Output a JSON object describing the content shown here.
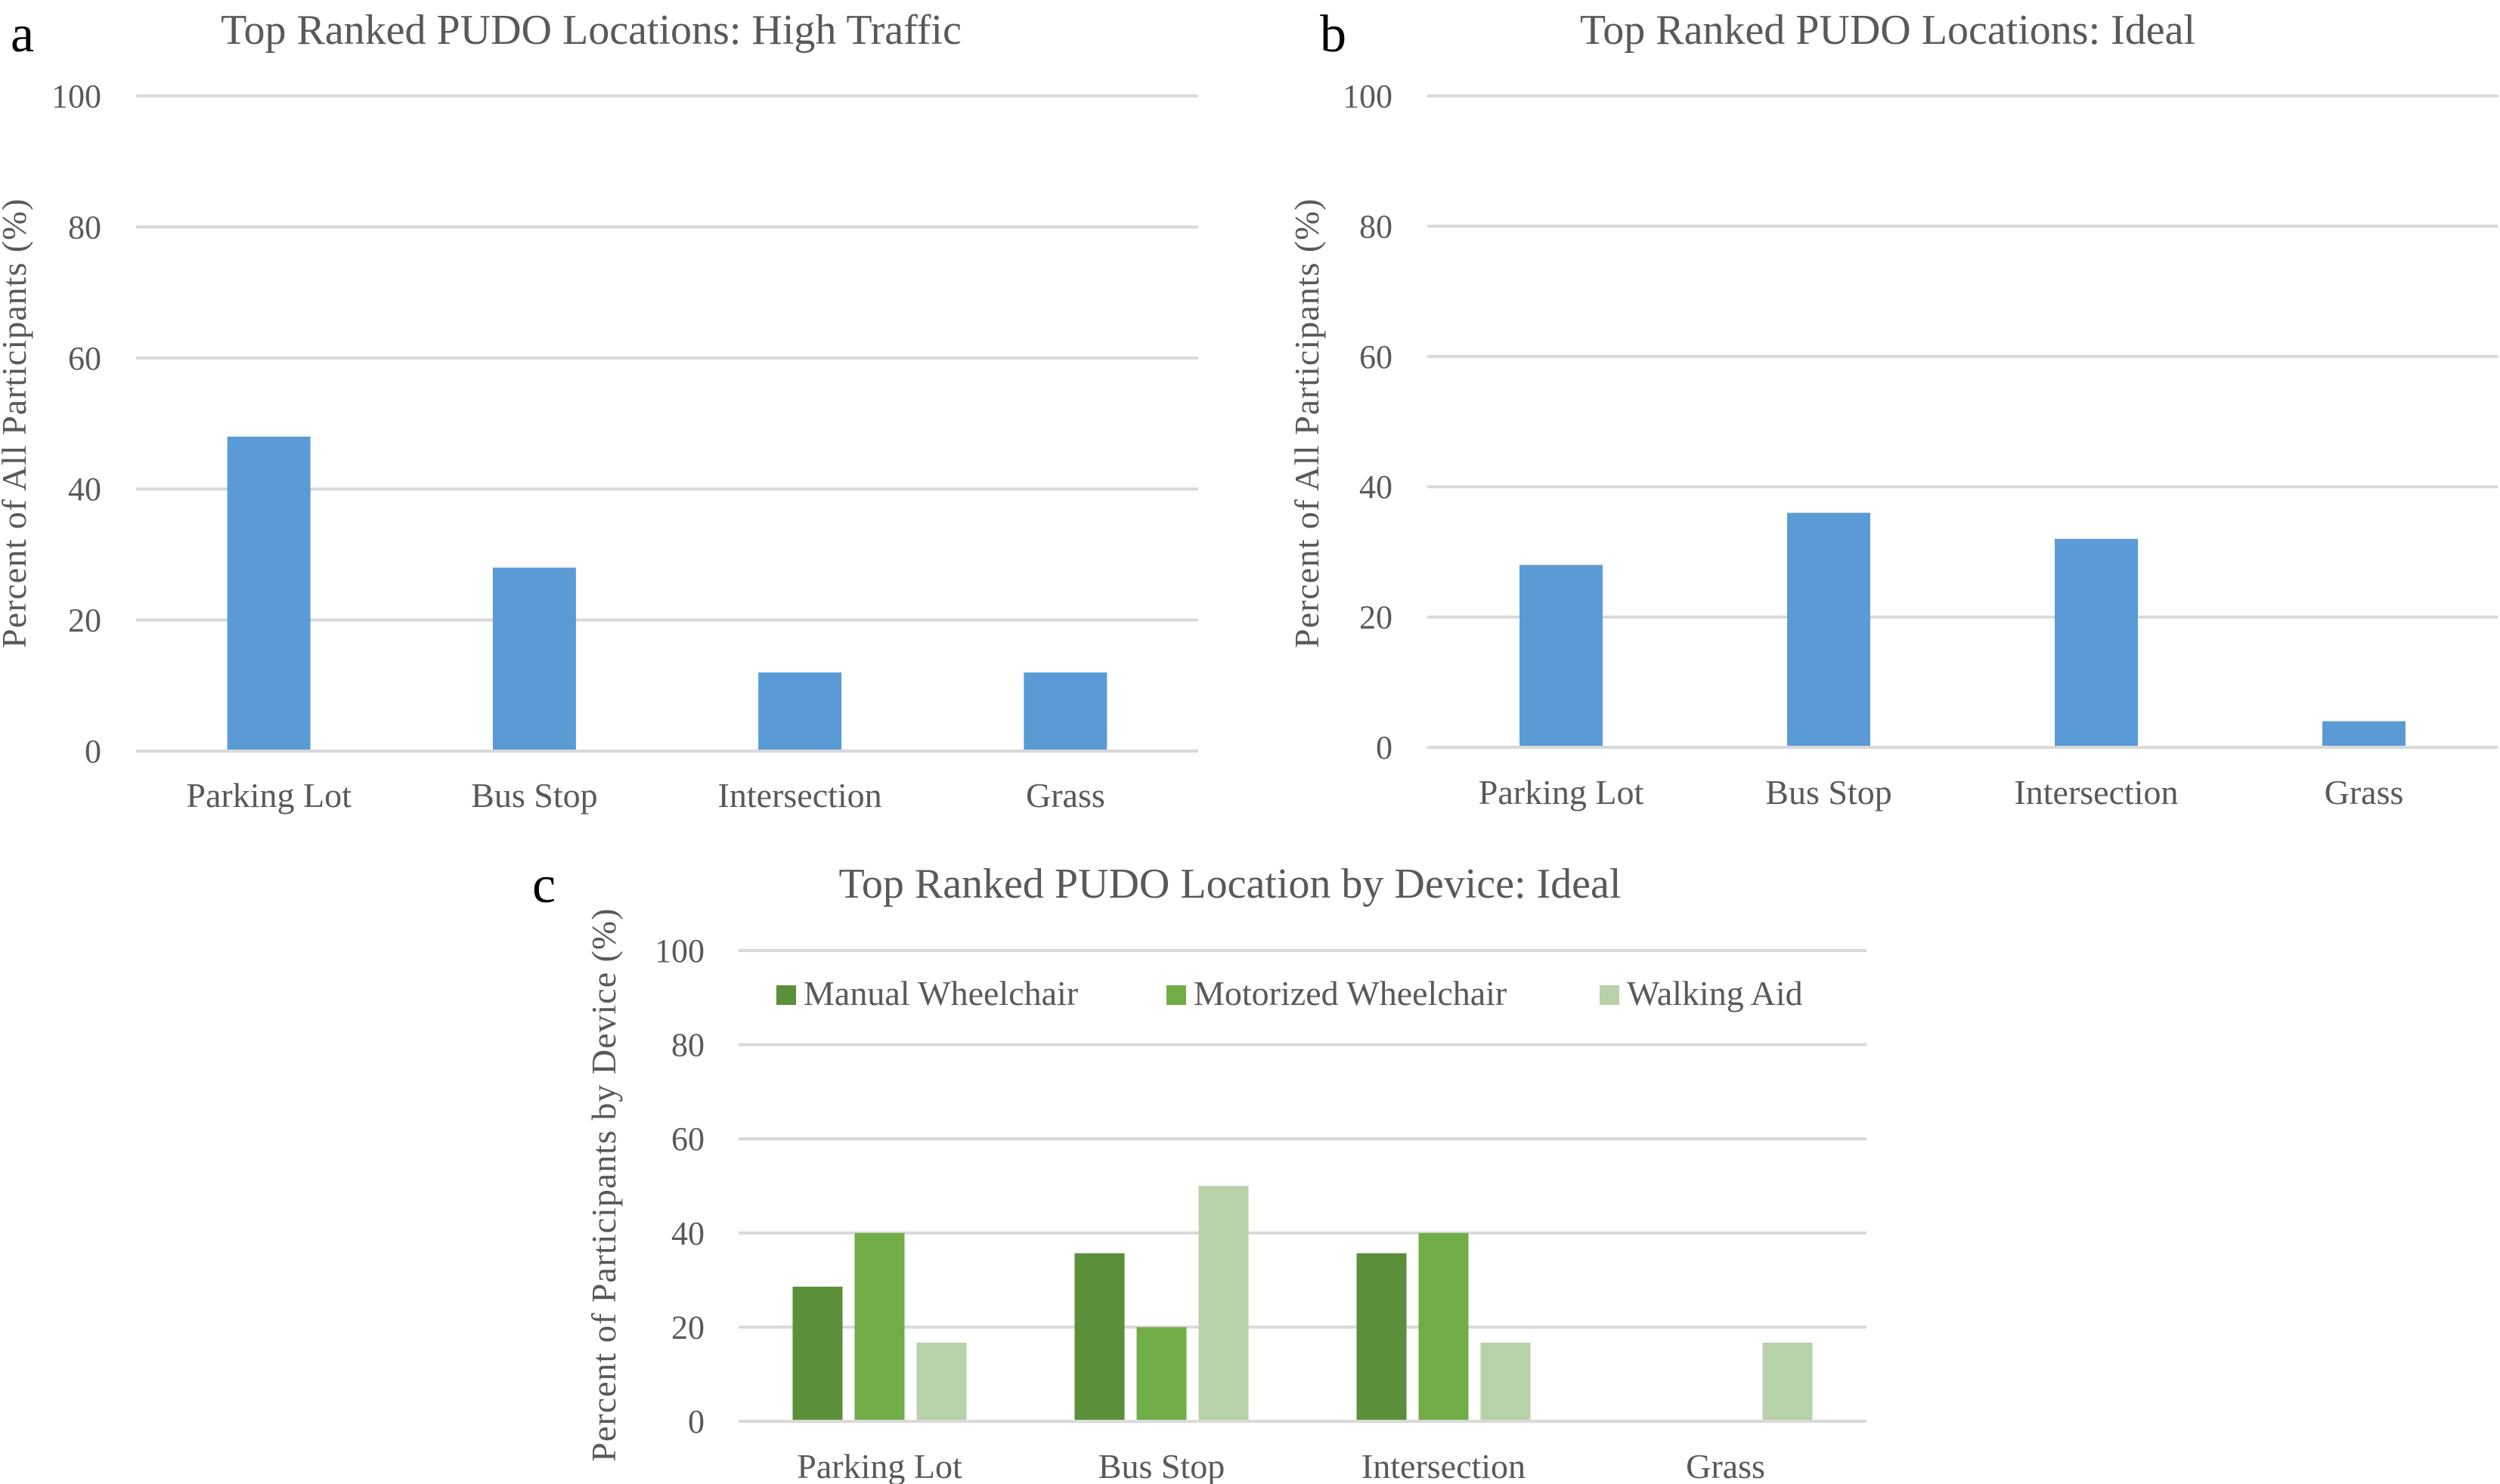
{
  "chart_data": [
    {
      "panel": "a",
      "type": "bar",
      "title": "Top Ranked PUDO Locations: High Traffic",
      "xlabel": "",
      "ylabel": "Percent of All Participants (%)",
      "categories": [
        "Parking Lot",
        "Bus Stop",
        "Intersection",
        "Grass"
      ],
      "values": [
        48,
        28,
        12,
        12
      ],
      "ylim": [
        0,
        100
      ],
      "yticks": [
        0,
        20,
        40,
        60,
        80,
        100
      ],
      "grid": true,
      "legend": null,
      "color": "#5b9bd5"
    },
    {
      "panel": "b",
      "type": "bar",
      "title": "Top Ranked PUDO Locations: Ideal",
      "xlabel": "",
      "ylabel": "Percent of All Participants (%)",
      "categories": [
        "Parking Lot",
        "Bus Stop",
        "Intersection",
        "Grass"
      ],
      "values": [
        28,
        36,
        32,
        4
      ],
      "ylim": [
        0,
        100
      ],
      "yticks": [
        0,
        20,
        40,
        60,
        80,
        100
      ],
      "grid": true,
      "legend": null,
      "color": "#5b9bd5"
    },
    {
      "panel": "c",
      "type": "bar",
      "title": "Top Ranked PUDO Location by Device: Ideal",
      "xlabel": "",
      "ylabel": "Percent of Participants by Device (%)",
      "categories": [
        "Parking Lot",
        "Bus Stop",
        "Intersection",
        "Grass"
      ],
      "series": [
        {
          "name": "Manual Wheelchair",
          "values": [
            28.6,
            35.7,
            35.7,
            0
          ],
          "color": "#5b8f3a"
        },
        {
          "name": "Motorized Wheelchair",
          "values": [
            40,
            20,
            40,
            0
          ],
          "color": "#70ad47"
        },
        {
          "name": "Walking Aid",
          "values": [
            16.7,
            50,
            16.7,
            16.7
          ],
          "color": "#b7d1a8"
        }
      ],
      "ylim": [
        0,
        100
      ],
      "yticks": [
        0,
        20,
        40,
        60,
        80,
        100
      ],
      "grid": true,
      "legend": "top"
    }
  ]
}
